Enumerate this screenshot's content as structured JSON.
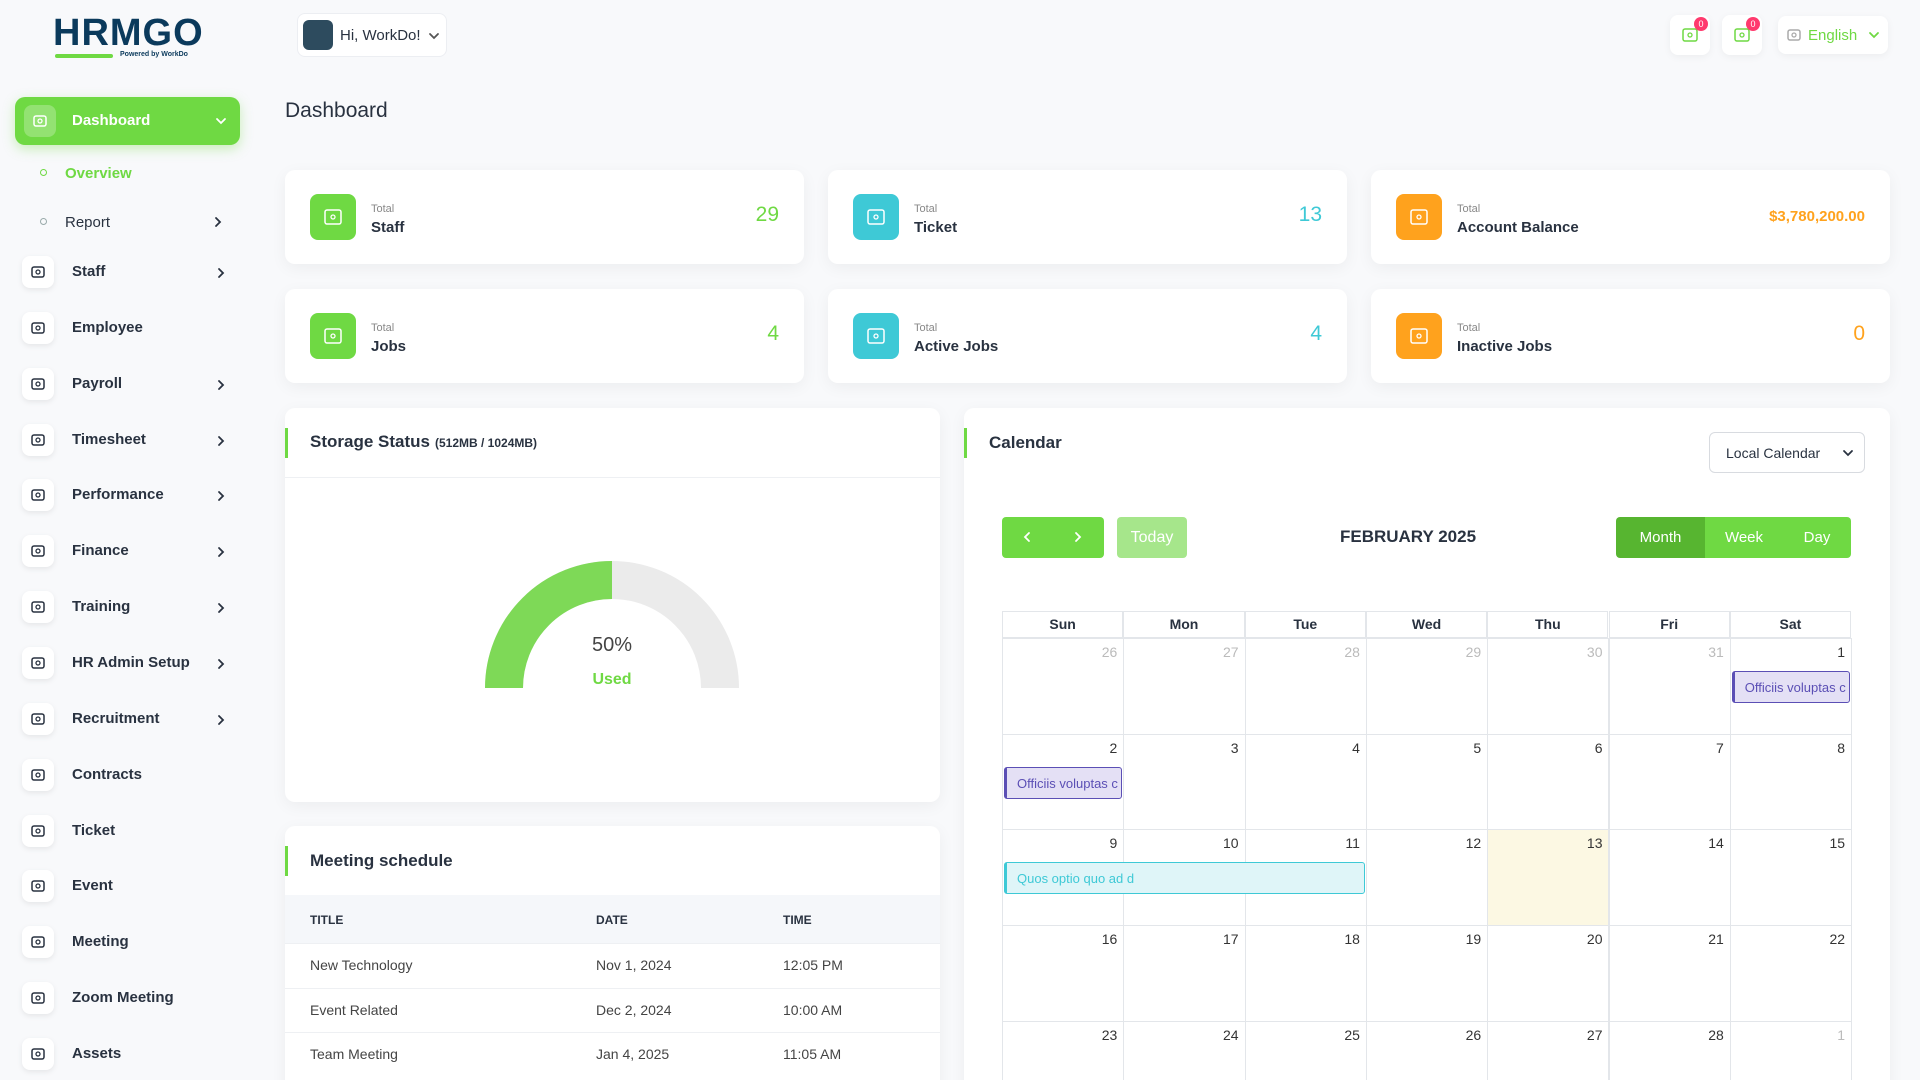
{
  "brand": {
    "logo": "HRMGO",
    "tagline": "Powered by WorkDo"
  },
  "header": {
    "greeting": "Hi, WorkDo!",
    "notifications": [
      0,
      0
    ],
    "language": "English"
  },
  "sidebar": {
    "menu": [
      {
        "label": "Dashboard",
        "active": true,
        "children": [
          {
            "label": "Overview",
            "active": true
          },
          {
            "label": "Report",
            "expandable": true
          }
        ]
      },
      {
        "label": "Staff",
        "expandable": true
      },
      {
        "label": "Employee"
      },
      {
        "label": "Payroll",
        "expandable": true
      },
      {
        "label": "Timesheet",
        "expandable": true
      },
      {
        "label": "Performance",
        "expandable": true
      },
      {
        "label": "Finance",
        "expandable": true
      },
      {
        "label": "Training",
        "expandable": true
      },
      {
        "label": "HR Admin Setup",
        "expandable": true
      },
      {
        "label": "Recruitment",
        "expandable": true
      },
      {
        "label": "Contracts"
      },
      {
        "label": "Ticket"
      },
      {
        "label": "Event"
      },
      {
        "label": "Meeting"
      },
      {
        "label": "Zoom Meeting"
      },
      {
        "label": "Assets"
      }
    ]
  },
  "page_title": "Dashboard",
  "stats": [
    {
      "caption": "Total",
      "label": "Staff",
      "value": 29,
      "color": "#6fd943"
    },
    {
      "caption": "Total",
      "label": "Ticket",
      "value": 13,
      "color": "#3ec9d6"
    },
    {
      "caption": "Total",
      "label": "Account Balance",
      "value": "$3,780,200.00",
      "color": "#ffa21d"
    },
    {
      "caption": "Total",
      "label": "Jobs",
      "value": 4,
      "color": "#6fd943"
    },
    {
      "caption": "Total",
      "label": "Active Jobs",
      "value": 4,
      "color": "#3ec9d6"
    },
    {
      "caption": "Total",
      "label": "Inactive Jobs",
      "value": 0,
      "color": "#ffa21d"
    }
  ],
  "storage": {
    "title": "Storage Status",
    "detail": "(512MB / 1024MB)",
    "percent": {
      "value": 50,
      "label": "50%"
    },
    "caption": "Used"
  },
  "meetings": {
    "title": "Meeting schedule",
    "columns": [
      "TITLE",
      "DATE",
      "TIME"
    ],
    "rows": [
      [
        "New Technology",
        "Nov 1, 2024",
        "12:05 PM"
      ],
      [
        "Event Related",
        "Dec 2, 2024",
        "10:00 AM"
      ],
      [
        "Team Meeting",
        "Jan 4, 2025",
        "11:05 AM"
      ]
    ]
  },
  "calendar": {
    "title": "Calendar",
    "source": "Local Calendar",
    "today_button": "Today",
    "month": "FEBRUARY 2025",
    "views": [
      "Month",
      "Week",
      "Day"
    ],
    "active_view": "Month",
    "weekdays": [
      "Sun",
      "Mon",
      "Tue",
      "Wed",
      "Thu",
      "Fri",
      "Sat"
    ],
    "weeks": [
      [
        26,
        27,
        28,
        29,
        30,
        31,
        1
      ],
      [
        2,
        3,
        4,
        5,
        6,
        7,
        8
      ],
      [
        9,
        10,
        11,
        12,
        13,
        14,
        15
      ],
      [
        16,
        17,
        18,
        19,
        20,
        21,
        22
      ],
      [
        23,
        24,
        25,
        26,
        27,
        28,
        1
      ]
    ],
    "today": 13,
    "events": [
      {
        "title": "Officiis voluptas c",
        "start": 1,
        "end": 1,
        "color": "#5b4fb5",
        "background": "#e4e0f5"
      },
      {
        "title": "Officiis voluptas c",
        "start": 2,
        "end": 2,
        "color": "#5b4fb5",
        "background": "#e4e0f5"
      },
      {
        "title": "Quos optio quo ad d",
        "start": 9,
        "end": 11,
        "color": "#3ec9d6",
        "background": "#dff5f8"
      }
    ]
  }
}
